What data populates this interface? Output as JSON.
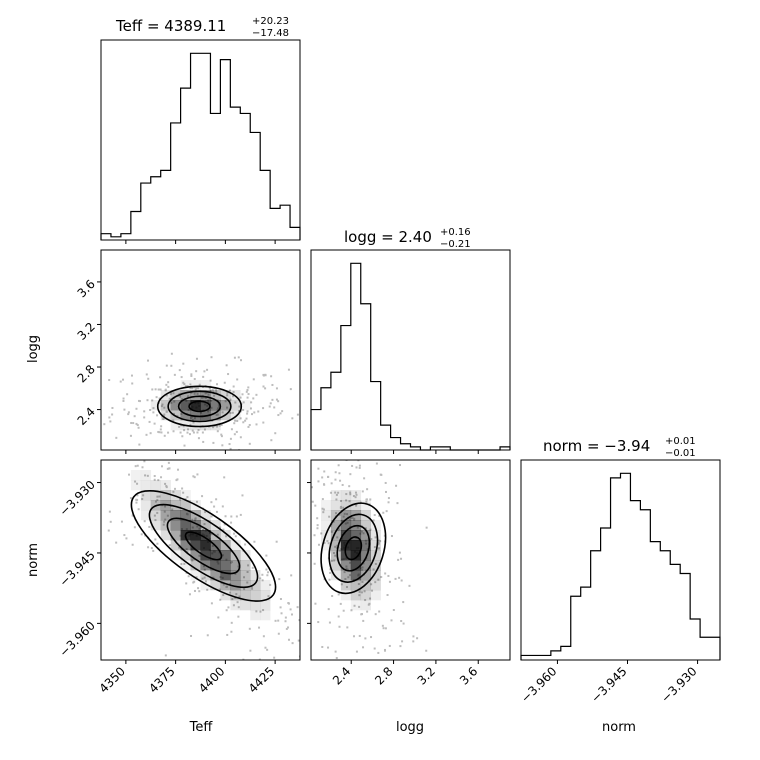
{
  "chart_data": {
    "type": "corner",
    "parameters": [
      {
        "name": "Teff",
        "range": [
          4337.5,
          4437.5
        ],
        "ticks": [
          4350,
          4375,
          4400,
          4425
        ],
        "title": {
          "prefix": "Teff = 4389.11",
          "upper": "+20.23",
          "lower": "−17.48"
        },
        "histogram": [
          2,
          1,
          2,
          9,
          18,
          20,
          22,
          37,
          48,
          59,
          59,
          40,
          57,
          42,
          40,
          34,
          22,
          10,
          11,
          4
        ]
      },
      {
        "name": "logg",
        "range": [
          2.02,
          3.9
        ],
        "ticks": [
          2.4,
          2.8,
          3.2,
          3.6
        ],
        "title": {
          "prefix": "logg = 2.40",
          "upper": "+0.16",
          "lower": "−0.21"
        },
        "histogram": [
          13,
          20,
          25,
          40,
          60,
          47,
          22,
          8,
          4,
          2,
          1,
          0,
          1,
          1,
          0,
          0,
          0,
          0,
          0,
          1
        ]
      },
      {
        "name": "norm",
        "range": [
          -3.9678,
          -3.9252
        ],
        "ticks": [
          -3.96,
          -3.945,
          -3.93
        ],
        "tick_labels": [
          "−3.960",
          "−3.945",
          "−3.930"
        ],
        "title": {
          "prefix": "norm = −3.94",
          "upper": "+0.01",
          "lower": "−0.01"
        },
        "histogram": [
          1,
          1,
          1,
          2,
          3,
          14,
          16,
          24,
          29,
          40,
          41,
          35,
          33,
          26,
          24,
          21,
          19,
          9,
          5,
          5
        ]
      }
    ],
    "axis_labels": {
      "teff": "Teff",
      "logg": "logg",
      "norm": "norm"
    },
    "panels": [
      {
        "id": "logg_vs_teff",
        "x": "Teff",
        "y": "logg",
        "core": [
          4387,
          2.43
        ],
        "spread": [
          10,
          0.09
        ],
        "corr": 0.0
      },
      {
        "id": "norm_vs_teff",
        "x": "Teff",
        "y": "norm",
        "core": [
          4389,
          -3.9435
        ],
        "spread": [
          15,
          0.0065
        ],
        "corr": -0.85
      },
      {
        "id": "norm_vs_logg",
        "x": "logg",
        "y": "norm",
        "core": [
          2.42,
          -3.944
        ],
        "spread": [
          0.12,
          0.0055
        ],
        "corr": -0.3
      }
    ],
    "grid": false,
    "legend": "none",
    "colors": {
      "line": "#000000",
      "density": "#000000",
      "points": "#bdbdbd"
    }
  }
}
